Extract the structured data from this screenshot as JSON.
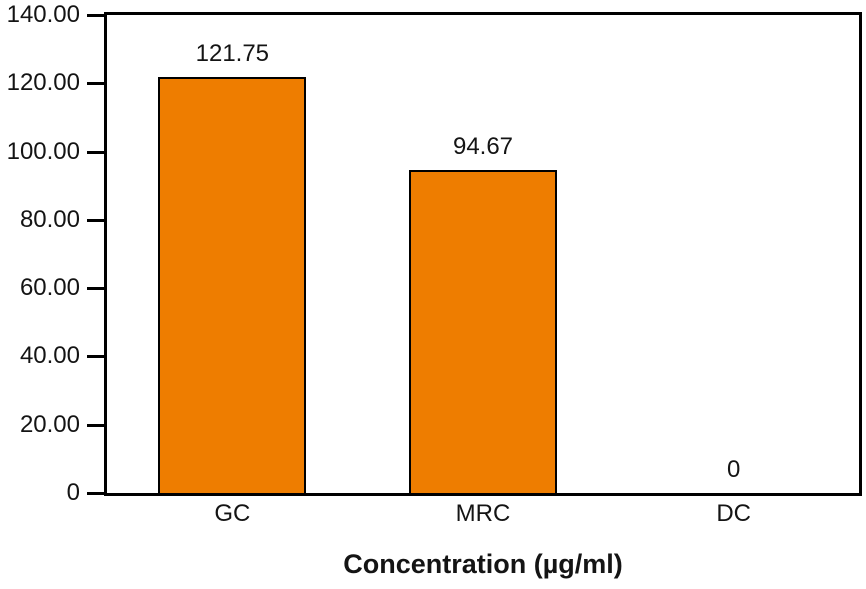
{
  "chart_data": {
    "type": "bar",
    "categories": [
      "GC",
      "MRC",
      "DC"
    ],
    "values": [
      121.75,
      94.67,
      0
    ],
    "value_labels": [
      "121.75",
      "94.67",
      "0"
    ],
    "title": "",
    "xlabel": "Concentration (µg/ml)",
    "ylabel": "",
    "ylim": [
      0,
      140
    ],
    "ytick_step": 20,
    "ytick_labels": [
      "0",
      "20.00",
      "40.00",
      "60.00",
      "80.00",
      "100.00",
      "120.00",
      "140.00"
    ],
    "grid": false,
    "legend": "none",
    "bar_color": "#ee7d00",
    "bar_border_color": "#000000",
    "axis_color": "#000000",
    "text_color": "#141414"
  }
}
